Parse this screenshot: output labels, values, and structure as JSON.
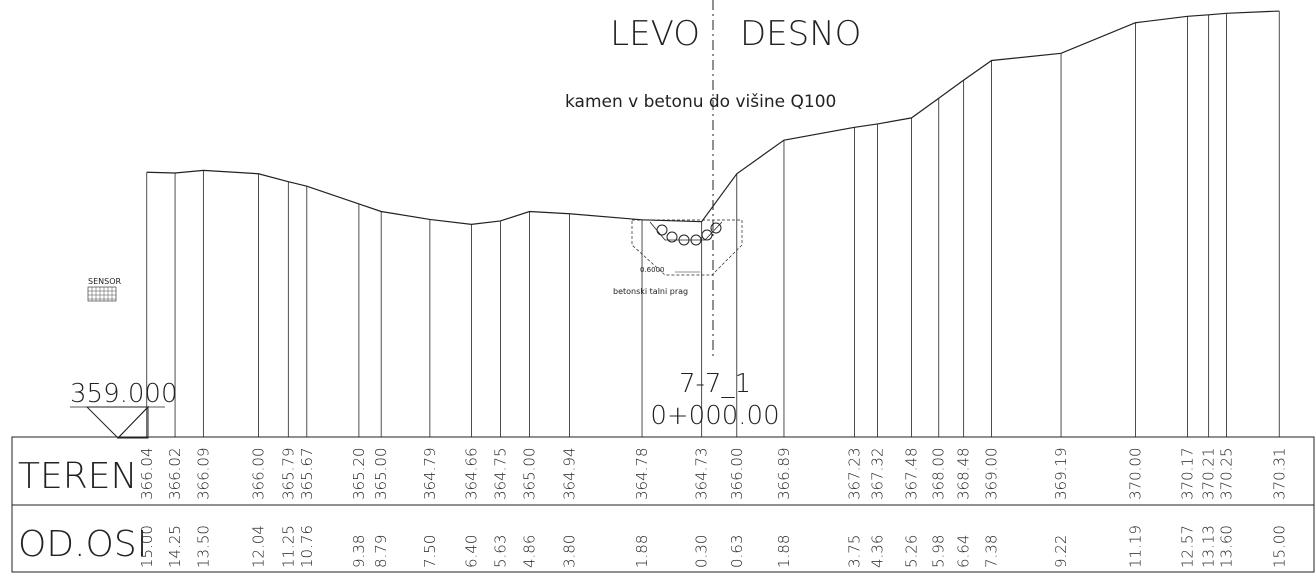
{
  "header": {
    "left_side": "LEVO",
    "right_side": "DESNO",
    "note": "kamen v betonu do višine Q100",
    "sensor": "SENSOR",
    "datum": "359.000",
    "profile": "7-7_1",
    "station": "0+000.00",
    "width_label": "0.6000",
    "sill_label": "betonski talni prag"
  },
  "table": {
    "row_labels": [
      "TEREN",
      "OD.OSI"
    ],
    "terrain": [
      "366.04",
      "366.02",
      "366.09",
      "366.00",
      "365.79",
      "365.67",
      "365.20",
      "365.00",
      "364.79",
      "364.66",
      "364.75",
      "365.00",
      "364.94",
      "364.78",
      "364.73",
      "366.00",
      "366.89",
      "367.23",
      "367.32",
      "367.48",
      "368.00",
      "368.48",
      "369.00",
      "369.19",
      "370.00",
      "370.17",
      "370.21",
      "370.25",
      "370.31"
    ],
    "offsets": [
      "15.00",
      "14.25",
      "13.50",
      "12.04",
      "11.25",
      "10.76",
      "9.38",
      "8.79",
      "7.50",
      "6.40",
      "5.63",
      "4.86",
      "3.80",
      "1.88",
      "0.30",
      "0.63",
      "1.88",
      "3.75",
      "4.36",
      "5.26",
      "5.98",
      "6.64",
      "7.38",
      "9.22",
      "11.19",
      "12.57",
      "13.13",
      "13.60",
      "15.00"
    ]
  }
}
